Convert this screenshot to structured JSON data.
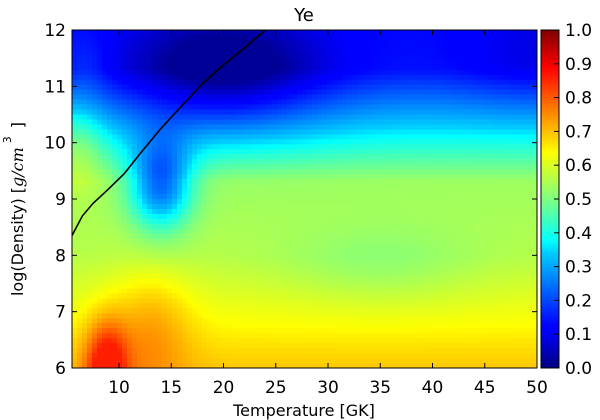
{
  "chart_data": {
    "type": "heatmap",
    "title": "Ye",
    "xlabel": "Temperature [GK]",
    "ylabel_prefix": "log(Density) [",
    "ylabel_math": "g/cm",
    "ylabel_exponent": "3",
    "ylabel_suffix": "]",
    "xlim": [
      5.5,
      50
    ],
    "ylim": [
      6,
      12
    ],
    "xticks": [
      "10",
      "15",
      "20",
      "25",
      "30",
      "35",
      "40",
      "45",
      "50"
    ],
    "xtick_values": [
      10,
      15,
      20,
      25,
      30,
      35,
      40,
      45,
      50
    ],
    "yticks": [
      "6",
      "7",
      "8",
      "9",
      "10",
      "11",
      "12"
    ],
    "ytick_values": [
      6,
      7,
      8,
      9,
      10,
      11,
      12
    ],
    "colorbar": {
      "colormap": "jet",
      "range": [
        0.0,
        1.0
      ],
      "ticks": [
        "0.0",
        "0.1",
        "0.2",
        "0.3",
        "0.4",
        "0.5",
        "0.6",
        "0.7",
        "0.8",
        "0.9",
        "1.0"
      ],
      "tick_values": [
        0.0,
        0.1,
        0.2,
        0.3,
        0.4,
        0.5,
        0.6,
        0.7,
        0.8,
        0.9,
        1.0
      ]
    },
    "field_description_points": [
      {
        "temperature": 8,
        "log_density": 11.5,
        "ye": 0.25
      },
      {
        "temperature": 8,
        "log_density": 10.0,
        "ye": 0.42
      },
      {
        "temperature": 13,
        "log_density": 9.0,
        "ye": 0.22
      },
      {
        "temperature": 25,
        "log_density": 11.5,
        "ye": 0.05
      },
      {
        "temperature": 45,
        "log_density": 11.0,
        "ye": 0.16
      },
      {
        "temperature": 40,
        "log_density": 9.0,
        "ye": 0.46
      },
      {
        "temperature": 30,
        "log_density": 7.5,
        "ye": 0.56
      },
      {
        "temperature": 10,
        "log_density": 6.3,
        "ye": 0.78
      }
    ],
    "contour_line": {
      "color": "#000000",
      "points": [
        {
          "x": 5.5,
          "y": 8.35
        },
        {
          "x": 6.5,
          "y": 8.7
        },
        {
          "x": 7.5,
          "y": 8.92
        },
        {
          "x": 9.0,
          "y": 9.18
        },
        {
          "x": 10.5,
          "y": 9.45
        },
        {
          "x": 12.0,
          "y": 9.8
        },
        {
          "x": 14.0,
          "y": 10.25
        },
        {
          "x": 16.0,
          "y": 10.65
        },
        {
          "x": 18.0,
          "y": 11.05
        },
        {
          "x": 20.0,
          "y": 11.38
        },
        {
          "x": 22.0,
          "y": 11.68
        },
        {
          "x": 24.0,
          "y": 12.0
        }
      ]
    }
  }
}
